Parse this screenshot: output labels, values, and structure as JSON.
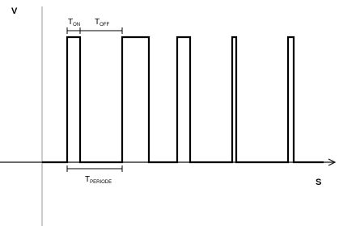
{
  "axes": {
    "y_label": "V",
    "x_label": "S"
  },
  "labels": [
    {
      "main": "T",
      "sub": "ON"
    },
    {
      "main": "T",
      "sub": "OFF"
    },
    {
      "main": "T",
      "sub": "PERIODE"
    }
  ]
}
